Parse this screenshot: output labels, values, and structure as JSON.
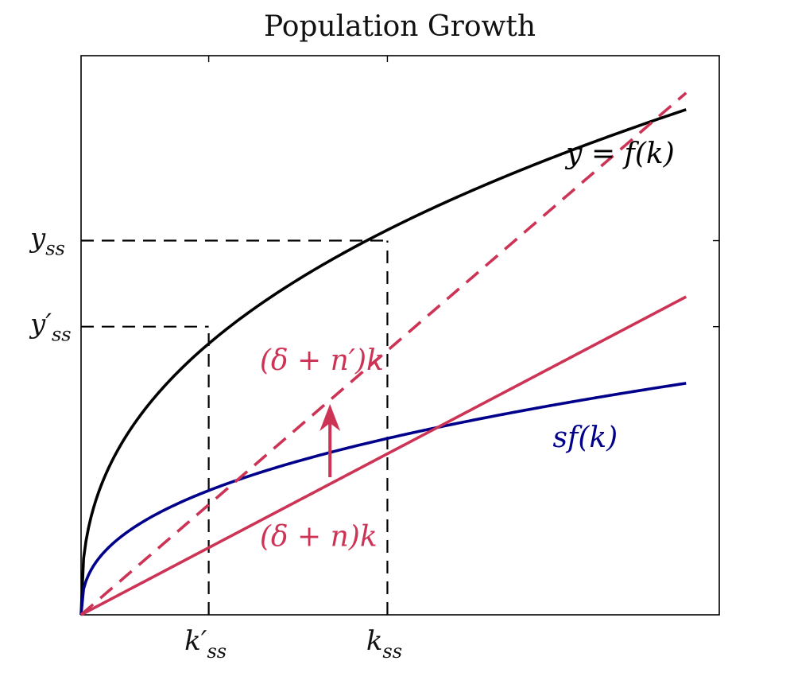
{
  "chart_data": {
    "type": "line",
    "title": "Population Growth",
    "xlabel": "",
    "ylabel": "",
    "grid": false,
    "xlim": [
      0,
      1.0
    ],
    "ylim": [
      0,
      1.3
    ],
    "x_ticks": [
      {
        "value": 0.2,
        "label": "k",
        "sub": "ss",
        "prime": true
      },
      {
        "value": 0.48,
        "label": "k",
        "sub": "ss",
        "prime": false
      }
    ],
    "y_ticks": [
      {
        "value": 0.67,
        "label": "y",
        "sub": "ss",
        "prime": true
      },
      {
        "value": 0.87,
        "label": "y",
        "sub": "ss",
        "prime": false
      }
    ],
    "series": [
      {
        "name": "y = f(k)",
        "kind": "power",
        "coef": 1.2,
        "exponent": 0.4,
        "x_range": [
          0,
          0.948
        ],
        "color": "#000000",
        "dash": false
      },
      {
        "name": "sf(k)",
        "kind": "power",
        "coef": 0.55,
        "exponent": 0.4,
        "x_range": [
          0,
          0.948
        ],
        "color": "#00008B",
        "dash": false
      },
      {
        "name": "(δ + n)k",
        "kind": "linear",
        "slope": 0.78,
        "x_range": [
          0,
          0.948
        ],
        "color": "#CC3355",
        "dash": false
      },
      {
        "name": "(δ + n′)k",
        "kind": "linear",
        "slope": 1.28,
        "x_range": [
          0,
          0.948
        ],
        "color": "#CC3355",
        "dash": true
      }
    ],
    "guides": [
      {
        "from": [
          0.2,
          0
        ],
        "to": [
          0.2,
          0.67
        ]
      },
      {
        "from": [
          0,
          0.67
        ],
        "to": [
          0.2,
          0.67
        ]
      },
      {
        "from": [
          0.48,
          0
        ],
        "to": [
          0.48,
          0.87
        ]
      },
      {
        "from": [
          0,
          0.87
        ],
        "to": [
          0.48,
          0.87
        ]
      }
    ],
    "arrow": {
      "from": [
        0.39,
        0.32
      ],
      "to": [
        0.39,
        0.49
      ],
      "color": "#CC3355"
    },
    "annotations": [
      {
        "text": "y = f(k)",
        "x": 0.93,
        "y": 1.05,
        "color": "#000000"
      },
      {
        "text": "sf(k)",
        "x": 0.79,
        "y": 0.39,
        "color": "#00008B"
      },
      {
        "text": "(δ + n′)k",
        "x": 0.28,
        "y": 0.57,
        "color": "#CC3355"
      },
      {
        "text": "(δ + n)k",
        "x": 0.28,
        "y": 0.16,
        "color": "#CC3355"
      }
    ]
  },
  "colors": {
    "black_curve": "#000000",
    "blue_curve": "#00008B",
    "red": "#CC3355"
  }
}
